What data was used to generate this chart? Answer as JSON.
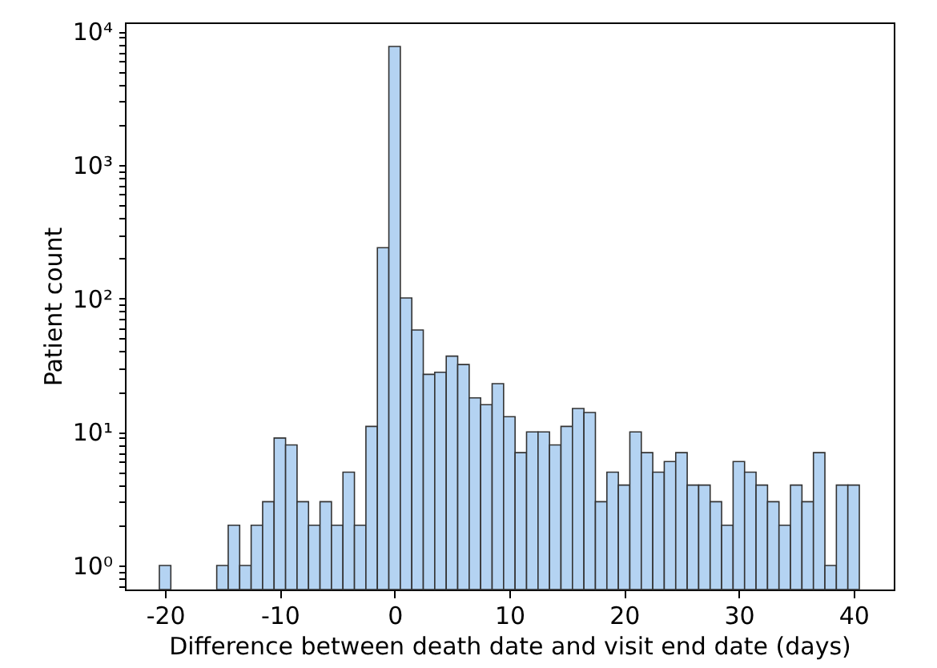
{
  "chart_data": {
    "type": "histogram",
    "xlabel": "Difference between death date and visit end date (days)",
    "ylabel": "Patient count",
    "bins": [
      -20.5,
      -19.5,
      -18.5,
      -17.5,
      -16.5,
      -15.5,
      -14.5,
      -13.5,
      -12.5,
      -11.5,
      -10.5,
      -9.5,
      -8.5,
      -7.5,
      -6.5,
      -5.5,
      -4.5,
      -3.5,
      -2.5,
      -1.5,
      -0.5,
      0.5,
      1.5,
      2.5,
      3.5,
      4.5,
      5.5,
      6.5,
      7.5,
      8.5,
      9.5,
      10.5,
      11.5,
      12.5,
      13.5,
      14.5,
      15.5,
      16.5,
      17.5,
      18.5,
      19.5,
      20.5,
      21.5,
      22.5,
      23.5,
      24.5,
      25.5,
      26.5,
      27.5,
      28.5,
      29.5,
      30.5,
      31.5,
      32.5,
      33.5,
      34.5,
      35.5,
      36.5,
      37.5,
      38.5,
      39.5,
      40.5
    ],
    "values": [
      1,
      null,
      null,
      null,
      null,
      1,
      2,
      1,
      2,
      3,
      9,
      8,
      3,
      2,
      3,
      2,
      5,
      2,
      11,
      240,
      7730,
      101,
      58,
      27,
      28,
      37,
      32,
      18,
      16,
      23,
      13,
      7,
      10,
      10,
      8,
      11,
      15,
      14,
      3,
      5,
      4,
      10,
      7,
      5,
      6,
      7,
      4,
      4,
      3,
      2,
      6,
      5,
      4,
      3,
      2,
      4,
      3,
      7,
      1,
      4,
      4
    ],
    "color": "#b4d3f2",
    "log": true,
    "grid": false,
    "xlim": [
      -23.5,
      43.5
    ],
    "xticks": [
      -20,
      -10,
      0,
      10,
      20,
      30,
      40
    ],
    "ylim": [
      0.66,
      11700
    ],
    "yticks": [
      {
        "value": 0.7,
        "label": null
      },
      {
        "value": 0.8,
        "label": null
      },
      {
        "value": 0.9,
        "label": null
      },
      {
        "value": 1,
        "label": "10⁰"
      },
      {
        "value": 2,
        "label": null
      },
      {
        "value": 3,
        "label": null
      },
      {
        "value": 4,
        "label": null
      },
      {
        "value": 5,
        "label": null
      },
      {
        "value": 6,
        "label": null
      },
      {
        "value": 7,
        "label": null
      },
      {
        "value": 8,
        "label": null
      },
      {
        "value": 9,
        "label": null
      },
      {
        "value": 10,
        "label": "10¹"
      },
      {
        "value": 20,
        "label": null
      },
      {
        "value": 30,
        "label": null
      },
      {
        "value": 40,
        "label": null
      },
      {
        "value": 50,
        "label": null
      },
      {
        "value": 60,
        "label": null
      },
      {
        "value": 70,
        "label": null
      },
      {
        "value": 80,
        "label": null
      },
      {
        "value": 90,
        "label": null
      },
      {
        "value": 100,
        "label": "10²"
      },
      {
        "value": 200,
        "label": null
      },
      {
        "value": 300,
        "label": null
      },
      {
        "value": 400,
        "label": null
      },
      {
        "value": 500,
        "label": null
      },
      {
        "value": 600,
        "label": null
      },
      {
        "value": 700,
        "label": null
      },
      {
        "value": 800,
        "label": null
      },
      {
        "value": 900,
        "label": null
      },
      {
        "value": 1000,
        "label": "10³"
      },
      {
        "value": 2000,
        "label": null
      },
      {
        "value": 3000,
        "label": null
      },
      {
        "value": 4000,
        "label": null
      },
      {
        "value": 5000,
        "label": null
      },
      {
        "value": 6000,
        "label": null
      },
      {
        "value": 7000,
        "label": null
      },
      {
        "value": 8000,
        "label": null
      },
      {
        "value": 9000,
        "label": null
      },
      {
        "value": 10000,
        "label": "10⁴"
      }
    ]
  }
}
